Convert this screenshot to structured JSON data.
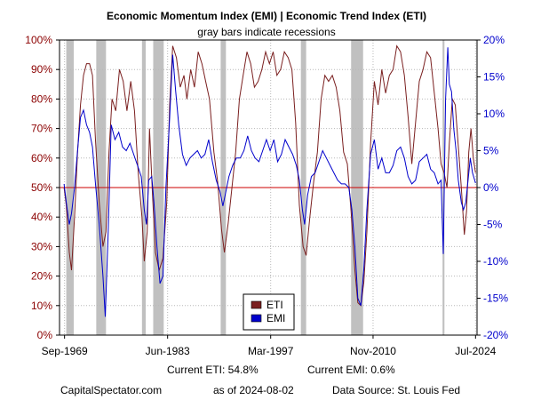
{
  "chart_data": {
    "type": "line",
    "title": "Economic Momentum Index (EMI) | Economic Trend Index (ETI)",
    "subtitle": "gray bars indicate recessions",
    "x_range": [
      1969.0,
      2024.7
    ],
    "x_ticks": [
      {
        "label": "Sep-1969",
        "value": 1969.67
      },
      {
        "label": "Jun-1983",
        "value": 1983.42
      },
      {
        "label": "Mar-1997",
        "value": 1997.17
      },
      {
        "label": "Nov-2010",
        "value": 2010.83
      },
      {
        "label": "Jul-2024",
        "value": 2024.5
      }
    ],
    "left_axis": {
      "name": "ETI",
      "ylim": [
        0,
        100
      ],
      "ticks": [
        0,
        10,
        20,
        30,
        40,
        50,
        60,
        70,
        80,
        90,
        100
      ],
      "tick_labels": [
        "0%",
        "10%",
        "20%",
        "30%",
        "40%",
        "50%",
        "60%",
        "70%",
        "80%",
        "90%",
        "100%"
      ],
      "color": "#8b0000"
    },
    "right_axis": {
      "name": "EMI",
      "ylim": [
        -20,
        20
      ],
      "ticks": [
        -20,
        -15,
        -10,
        -5,
        0,
        5,
        10,
        15,
        20
      ],
      "tick_labels": [
        "-20%",
        "-15%",
        "-10%",
        "-5%",
        "0%",
        "5%",
        "10%",
        "15%",
        "20%"
      ],
      "color": "#0000cc"
    },
    "reference_line": {
      "axis": "left",
      "value": 50,
      "color": "#cc0000"
    },
    "recessions": [
      [
        1969.9,
        1970.9
      ],
      [
        1973.9,
        1975.2
      ],
      [
        1980.0,
        1980.5
      ],
      [
        1981.5,
        1982.9
      ],
      [
        1990.5,
        1991.2
      ],
      [
        2001.2,
        2001.9
      ],
      [
        2007.9,
        2009.5
      ],
      [
        2020.1,
        2020.35
      ]
    ],
    "series": [
      {
        "name": "ETI",
        "axis": "left",
        "color": "#7a1f1f",
        "points": [
          [
            1969.6,
            50
          ],
          [
            1969.9,
            44
          ],
          [
            1970.3,
            28
          ],
          [
            1970.6,
            22
          ],
          [
            1971.0,
            40
          ],
          [
            1971.4,
            62
          ],
          [
            1971.8,
            78
          ],
          [
            1972.2,
            88
          ],
          [
            1972.6,
            92
          ],
          [
            1973.0,
            92
          ],
          [
            1973.4,
            88
          ],
          [
            1973.8,
            66
          ],
          [
            1974.3,
            45
          ],
          [
            1974.8,
            30
          ],
          [
            1975.2,
            35
          ],
          [
            1975.6,
            62
          ],
          [
            1976.0,
            80
          ],
          [
            1976.5,
            76
          ],
          [
            1977.0,
            90
          ],
          [
            1977.5,
            86
          ],
          [
            1978.0,
            76
          ],
          [
            1978.5,
            86
          ],
          [
            1979.0,
            76
          ],
          [
            1979.5,
            55
          ],
          [
            1980.0,
            40
          ],
          [
            1980.3,
            25
          ],
          [
            1980.7,
            35
          ],
          [
            1981.0,
            70
          ],
          [
            1981.4,
            48
          ],
          [
            1981.8,
            28
          ],
          [
            1982.3,
            22
          ],
          [
            1982.8,
            26
          ],
          [
            1983.3,
            45
          ],
          [
            1983.7,
            78
          ],
          [
            1984.1,
            98
          ],
          [
            1984.6,
            94
          ],
          [
            1985.1,
            84
          ],
          [
            1985.6,
            88
          ],
          [
            1986.0,
            80
          ],
          [
            1986.5,
            90
          ],
          [
            1987.0,
            84
          ],
          [
            1987.5,
            96
          ],
          [
            1988.0,
            92
          ],
          [
            1988.5,
            86
          ],
          [
            1989.0,
            80
          ],
          [
            1989.6,
            62
          ],
          [
            1990.1,
            52
          ],
          [
            1990.6,
            36
          ],
          [
            1991.0,
            28
          ],
          [
            1991.5,
            38
          ],
          [
            1992.0,
            50
          ],
          [
            1992.5,
            62
          ],
          [
            1993.0,
            80
          ],
          [
            1993.5,
            88
          ],
          [
            1994.0,
            96
          ],
          [
            1994.5,
            92
          ],
          [
            1995.0,
            84
          ],
          [
            1995.5,
            86
          ],
          [
            1996.0,
            90
          ],
          [
            1996.5,
            96
          ],
          [
            1997.0,
            92
          ],
          [
            1997.5,
            96
          ],
          [
            1998.0,
            88
          ],
          [
            1998.5,
            90
          ],
          [
            1999.0,
            96
          ],
          [
            1999.5,
            94
          ],
          [
            2000.0,
            90
          ],
          [
            2000.5,
            72
          ],
          [
            2001.0,
            44
          ],
          [
            2001.5,
            30
          ],
          [
            2001.9,
            27
          ],
          [
            2002.4,
            40
          ],
          [
            2002.9,
            52
          ],
          [
            2003.4,
            62
          ],
          [
            2003.9,
            80
          ],
          [
            2004.4,
            88
          ],
          [
            2004.9,
            86
          ],
          [
            2005.4,
            88
          ],
          [
            2005.9,
            84
          ],
          [
            2006.4,
            76
          ],
          [
            2006.9,
            62
          ],
          [
            2007.4,
            58
          ],
          [
            2007.9,
            42
          ],
          [
            2008.4,
            22
          ],
          [
            2008.8,
            11
          ],
          [
            2009.2,
            10
          ],
          [
            2009.6,
            18
          ],
          [
            2010.0,
            35
          ],
          [
            2010.5,
            65
          ],
          [
            2011.0,
            86
          ],
          [
            2011.5,
            78
          ],
          [
            2012.0,
            90
          ],
          [
            2012.5,
            82
          ],
          [
            2013.0,
            88
          ],
          [
            2013.5,
            90
          ],
          [
            2014.0,
            98
          ],
          [
            2014.5,
            96
          ],
          [
            2015.0,
            88
          ],
          [
            2015.5,
            74
          ],
          [
            2016.0,
            58
          ],
          [
            2016.5,
            72
          ],
          [
            2017.0,
            86
          ],
          [
            2017.5,
            90
          ],
          [
            2018.0,
            96
          ],
          [
            2018.5,
            94
          ],
          [
            2019.0,
            82
          ],
          [
            2019.5,
            70
          ],
          [
            2019.9,
            58
          ],
          [
            2020.3,
            55
          ],
          [
            2020.7,
            50
          ],
          [
            2021.0,
            65
          ],
          [
            2021.4,
            80
          ],
          [
            2021.8,
            78
          ],
          [
            2022.2,
            64
          ],
          [
            2022.6,
            50
          ],
          [
            2023.0,
            34
          ],
          [
            2023.3,
            42
          ],
          [
            2023.6,
            62
          ],
          [
            2023.9,
            70
          ],
          [
            2024.2,
            60
          ],
          [
            2024.5,
            55
          ]
        ]
      },
      {
        "name": "EMI",
        "axis": "right",
        "color": "#0000cc",
        "points": [
          [
            1969.6,
            0.5
          ],
          [
            1969.9,
            -2
          ],
          [
            1970.3,
            -5
          ],
          [
            1970.6,
            -3.5
          ],
          [
            1971.0,
            0
          ],
          [
            1971.4,
            5
          ],
          [
            1971.8,
            9.5
          ],
          [
            1972.2,
            10.5
          ],
          [
            1972.6,
            8.5
          ],
          [
            1973.0,
            7.5
          ],
          [
            1973.4,
            5.5
          ],
          [
            1973.8,
            0.5
          ],
          [
            1974.3,
            -5
          ],
          [
            1974.8,
            -12
          ],
          [
            1975.1,
            -17.5
          ],
          [
            1975.5,
            -6
          ],
          [
            1975.9,
            8.5
          ],
          [
            1976.4,
            6.5
          ],
          [
            1976.9,
            7.5
          ],
          [
            1977.4,
            5.5
          ],
          [
            1977.9,
            5
          ],
          [
            1978.4,
            6
          ],
          [
            1978.9,
            4.5
          ],
          [
            1979.4,
            3
          ],
          [
            1979.9,
            1.5
          ],
          [
            1980.3,
            -3
          ],
          [
            1980.6,
            -5
          ],
          [
            1980.9,
            1
          ],
          [
            1981.3,
            1.5
          ],
          [
            1981.6,
            -2
          ],
          [
            1982.0,
            -8
          ],
          [
            1982.4,
            -13
          ],
          [
            1982.8,
            -12
          ],
          [
            1983.2,
            0
          ],
          [
            1983.7,
            9.5
          ],
          [
            1984.1,
            18
          ],
          [
            1984.5,
            13
          ],
          [
            1984.9,
            8.5
          ],
          [
            1985.4,
            4.5
          ],
          [
            1985.9,
            3
          ],
          [
            1986.4,
            4
          ],
          [
            1986.9,
            4.5
          ],
          [
            1987.4,
            5
          ],
          [
            1987.9,
            4
          ],
          [
            1988.4,
            4.5
          ],
          [
            1988.9,
            6.5
          ],
          [
            1989.4,
            3.5
          ],
          [
            1989.9,
            1
          ],
          [
            1990.4,
            -0.5
          ],
          [
            1990.8,
            -2.5
          ],
          [
            1991.1,
            -1
          ],
          [
            1991.6,
            1.5
          ],
          [
            1992.1,
            3
          ],
          [
            1992.6,
            4
          ],
          [
            1993.1,
            4
          ],
          [
            1993.6,
            5
          ],
          [
            1994.1,
            7
          ],
          [
            1994.6,
            5
          ],
          [
            1995.1,
            4
          ],
          [
            1995.6,
            3.5
          ],
          [
            1996.1,
            5
          ],
          [
            1996.6,
            6.5
          ],
          [
            1997.1,
            5
          ],
          [
            1997.6,
            6.5
          ],
          [
            1998.1,
            3.5
          ],
          [
            1998.6,
            4.5
          ],
          [
            1999.1,
            6.5
          ],
          [
            1999.6,
            5.5
          ],
          [
            2000.1,
            4.5
          ],
          [
            2000.6,
            3
          ],
          [
            2001.0,
            1
          ],
          [
            2001.4,
            -3
          ],
          [
            2001.7,
            -5
          ],
          [
            2002.1,
            -1
          ],
          [
            2002.6,
            1.5
          ],
          [
            2003.1,
            2
          ],
          [
            2003.6,
            3.5
          ],
          [
            2004.1,
            5
          ],
          [
            2004.6,
            4
          ],
          [
            2005.1,
            3
          ],
          [
            2005.6,
            2
          ],
          [
            2006.1,
            1
          ],
          [
            2006.6,
            0.5
          ],
          [
            2007.1,
            0.5
          ],
          [
            2007.6,
            0
          ],
          [
            2008.0,
            -3
          ],
          [
            2008.4,
            -8
          ],
          [
            2008.8,
            -15
          ],
          [
            2009.2,
            -16
          ],
          [
            2009.6,
            -11
          ],
          [
            2010.0,
            -3
          ],
          [
            2010.5,
            4.5
          ],
          [
            2011.0,
            6.5
          ],
          [
            2011.5,
            2.5
          ],
          [
            2012.0,
            4
          ],
          [
            2012.5,
            2
          ],
          [
            2013.0,
            2
          ],
          [
            2013.5,
            3
          ],
          [
            2014.0,
            5
          ],
          [
            2014.5,
            5.5
          ],
          [
            2015.0,
            4
          ],
          [
            2015.5,
            1.5
          ],
          [
            2016.0,
            0.5
          ],
          [
            2016.5,
            1
          ],
          [
            2017.0,
            3.5
          ],
          [
            2017.5,
            4
          ],
          [
            2018.0,
            4.5
          ],
          [
            2018.5,
            2.5
          ],
          [
            2019.0,
            2
          ],
          [
            2019.5,
            0.5
          ],
          [
            2019.9,
            1
          ],
          [
            2020.2,
            -9
          ],
          [
            2020.5,
            12
          ],
          [
            2020.8,
            19
          ],
          [
            2021.0,
            14
          ],
          [
            2021.3,
            13
          ],
          [
            2021.6,
            8
          ],
          [
            2021.9,
            5
          ],
          [
            2022.2,
            1
          ],
          [
            2022.6,
            -2
          ],
          [
            2022.9,
            -3
          ],
          [
            2023.2,
            -2
          ],
          [
            2023.5,
            1
          ],
          [
            2023.8,
            4
          ],
          [
            2024.1,
            2
          ],
          [
            2024.5,
            0.6
          ]
        ]
      }
    ],
    "legend": {
      "position": "bottom-center",
      "entries": [
        "ETI",
        "EMI"
      ]
    },
    "grid": true
  },
  "footer": {
    "current_eti": "Current ETI:  54.8%",
    "current_emi": "Current EMI:    0.6%",
    "source_site": "CapitalSpectator.com",
    "as_of": "as of 2024-08-02",
    "data_source": "Data Source: St. Louis Fed"
  }
}
